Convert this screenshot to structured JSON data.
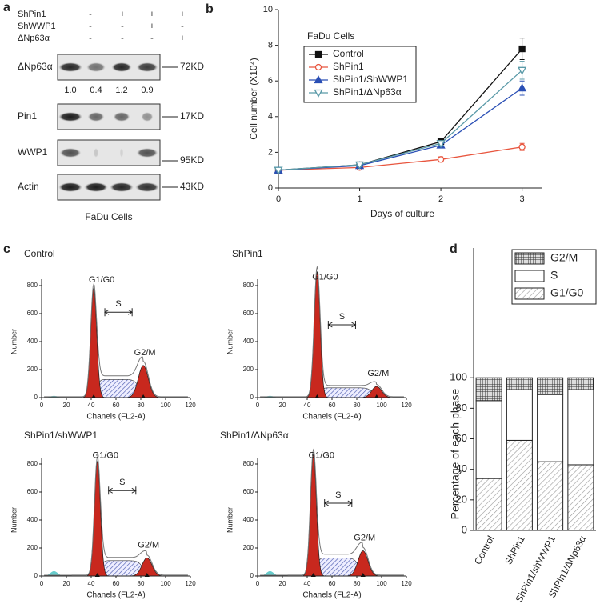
{
  "panel_a": {
    "letter": "a",
    "conditions": [
      {
        "name": "ShPin1",
        "signs": [
          "-",
          "+",
          "+",
          "+"
        ]
      },
      {
        "name": "ShWWP1",
        "signs": [
          "-",
          "-",
          "+",
          "-"
        ]
      },
      {
        "name": "ΔNp63α",
        "signs": [
          "-",
          "-",
          "-",
          "+"
        ]
      }
    ],
    "blots": [
      {
        "label": "ΔNp63α",
        "size": "72KD"
      },
      {
        "label": "Pin1",
        "size": "17KD"
      },
      {
        "label": "WWP1",
        "size": "95KD"
      },
      {
        "label": "Actin",
        "size": "43KD"
      }
    ],
    "quantification": [
      "1.0",
      "0.4",
      "1.2",
      "0.9"
    ],
    "caption": "FaDu Cells"
  },
  "chart_data": [
    {
      "type": "line",
      "panel_label": "b",
      "annotation": "FaDu Cells",
      "xlabel": "Days of culture",
      "ylabel": "Cell number (X10⁴)",
      "x": [
        0,
        1,
        2,
        3
      ],
      "xlim": [
        0,
        3.25
      ],
      "xticks": [
        0,
        1,
        2,
        3
      ],
      "ylim": [
        0,
        10
      ],
      "yticks": [
        0,
        2,
        4,
        6,
        8,
        10
      ],
      "legend": "upper left",
      "series": [
        {
          "name": "Control",
          "color": "#111111",
          "marker": "square",
          "filled": true,
          "values": [
            1.0,
            1.3,
            2.6,
            7.8
          ],
          "errors": [
            0,
            0.1,
            0.15,
            0.6
          ]
        },
        {
          "name": "ShPin1",
          "color": "#e8553e",
          "marker": "circle",
          "filled": false,
          "values": [
            1.0,
            1.15,
            1.6,
            2.3
          ],
          "errors": [
            0,
            0.1,
            0.15,
            0.2
          ]
        },
        {
          "name": "ShPin1/ShWWP1",
          "color": "#2a4fb5",
          "marker": "triangle-up",
          "filled": true,
          "values": [
            1.0,
            1.25,
            2.4,
            5.6
          ],
          "errors": [
            0,
            0.1,
            0.1,
            0.4
          ]
        },
        {
          "name": "ShPin1/ΔNp63α",
          "color": "#5a9aa8",
          "marker": "triangle-down",
          "filled": false,
          "values": [
            1.0,
            1.3,
            2.5,
            6.6
          ],
          "errors": [
            0,
            0.1,
            0.1,
            0.5
          ]
        }
      ]
    },
    {
      "type": "bar",
      "stacked": true,
      "panel_label": "d",
      "ylabel": "Percentage of each phase",
      "categories": [
        "Control",
        "ShPin1",
        "ShPin1/shWWP1",
        "ShPin1/ΔNp63α"
      ],
      "ylim": [
        0,
        185
      ],
      "yticks": [
        0,
        20,
        40,
        60,
        80,
        100
      ],
      "legend": "upper right",
      "series": [
        {
          "name": "G1/G0",
          "color": "#999999",
          "pattern": "hatch",
          "values": [
            34,
            59,
            45,
            43
          ]
        },
        {
          "name": "S",
          "color": "#ffffff",
          "pattern": "none",
          "values": [
            51,
            33,
            44,
            49
          ]
        },
        {
          "name": "G2/M",
          "color": "#555555",
          "pattern": "grid",
          "values": [
            15,
            8,
            11,
            8
          ]
        }
      ]
    }
  ],
  "panel_c": {
    "letter": "c",
    "xlabel": "Chanels (FL2-A)",
    "ylabel": "Number",
    "xticks": [
      0,
      20,
      40,
      60,
      80,
      100,
      120
    ],
    "yticks": [
      0,
      200,
      400,
      600,
      800
    ],
    "histograms": [
      {
        "title": "Control",
        "g1": "G1/G0",
        "s": "S",
        "g2": "G2/M"
      },
      {
        "title": "ShPin1",
        "g1": "G1/G0",
        "s": "S",
        "g2": "G2/M"
      },
      {
        "title": "ShPin1/shWWP1",
        "g1": "G1/G0",
        "s": "S",
        "g2": "G2/M"
      },
      {
        "title": "ShPin1/ΔNp63α",
        "g1": "G1/G0",
        "s": "S",
        "g2": "G2/M"
      }
    ]
  }
}
